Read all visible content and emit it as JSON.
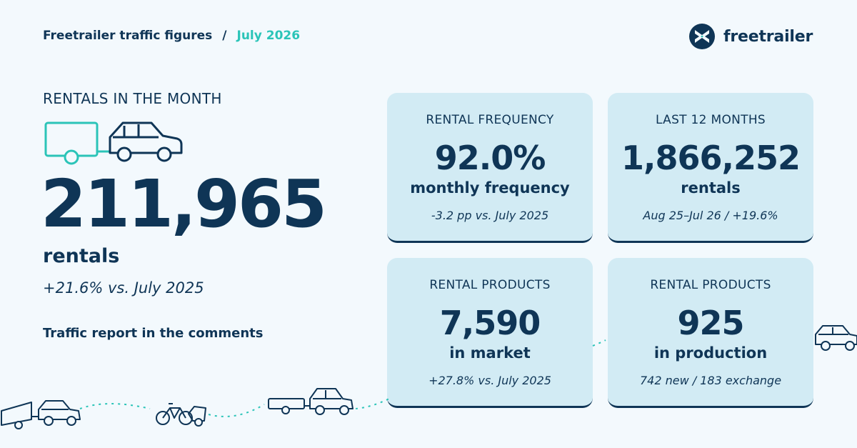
{
  "header": {
    "title": "Freetrailer traffic figures",
    "separator": "/",
    "period": "July 2026",
    "brand": "freetrailer"
  },
  "hero": {
    "section_title": "RENTALS IN THE MONTH",
    "value": "211,965",
    "unit": "rentals",
    "change": "+21.6% vs. July 2025",
    "note": "Traffic report in the comments"
  },
  "cards": [
    {
      "label": "RENTAL FREQUENCY",
      "value": "92.0%",
      "sub": "monthly frequency",
      "note": "-3.2 pp vs. July 2025"
    },
    {
      "label": "LAST 12 MONTHS",
      "value": "1,866,252",
      "sub": "rentals",
      "note": "Aug 25–Jul 26 / +19.6%"
    },
    {
      "label": "RENTAL PRODUCTS",
      "value": "7,590",
      "sub": "in market",
      "note": "+27.8% vs. July 2025"
    },
    {
      "label": "RENTAL PRODUCTS",
      "value": "925",
      "sub": "in production",
      "note": "742 new / 183 exchange"
    }
  ],
  "colors": {
    "navy": "#0f3556",
    "teal": "#2bc4b8",
    "card_bg": "#d2ebf4",
    "page_bg": "#f3f9fd"
  },
  "icons": [
    "freetrailer-logo-icon",
    "trailer-icon",
    "car-icon",
    "bicycle-trailer-icon"
  ]
}
